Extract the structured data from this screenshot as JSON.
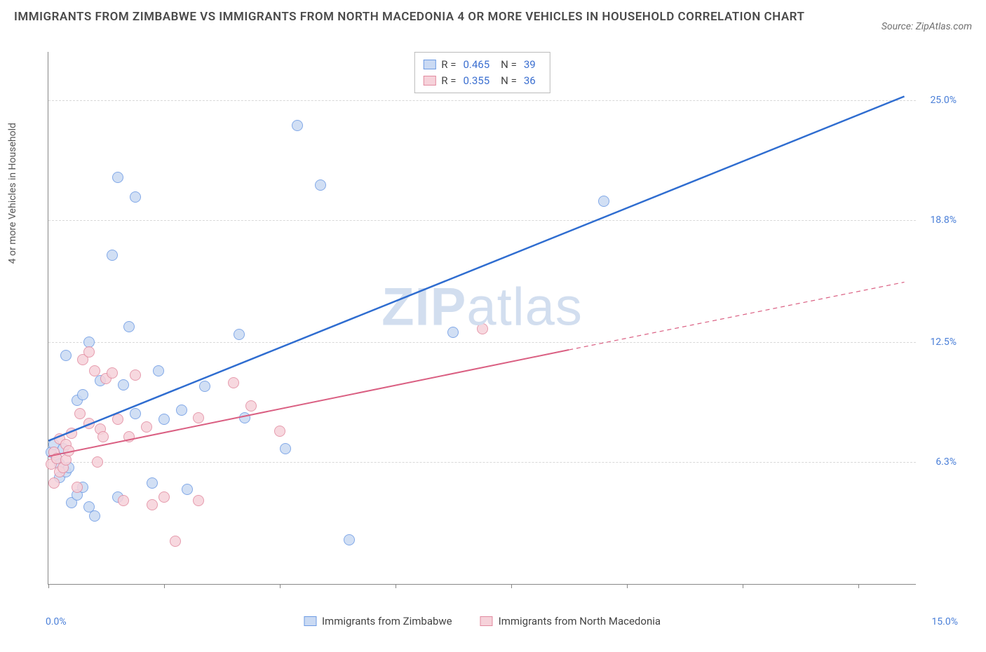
{
  "title": "IMMIGRANTS FROM ZIMBABWE VS IMMIGRANTS FROM NORTH MACEDONIA 4 OR MORE VEHICLES IN HOUSEHOLD CORRELATION CHART",
  "source": "Source: ZipAtlas.com",
  "ylabel": "4 or more Vehicles in Household",
  "watermark_bold": "ZIP",
  "watermark_light": "atlas",
  "chart": {
    "type": "scatter-with-regression",
    "xlim": [
      0,
      15
    ],
    "ylim": [
      0,
      27.5
    ],
    "x_ticks": [
      0,
      2,
      4,
      6,
      8,
      10,
      12,
      14
    ],
    "y_gridlines": [
      6.3,
      12.5,
      18.8,
      25.0
    ],
    "y_tick_labels": [
      "6.3%",
      "12.5%",
      "18.8%",
      "25.0%"
    ],
    "x_left_label": "0.0%",
    "x_right_label": "15.0%",
    "background_color": "#ffffff",
    "grid_color": "#d8d8d8",
    "axis_color": "#888888"
  },
  "series": [
    {
      "name": "Immigrants from Zimbabwe",
      "color_fill": "#cadaf3",
      "color_stroke": "#6d9be4",
      "line_color": "#2f6dd0",
      "line_width": 2.5,
      "line_dash": "none",
      "R_label": "R =",
      "R": "0.465",
      "N_label": "N =",
      "N": "39",
      "reg_start": [
        0.0,
        7.4
      ],
      "reg_end": [
        14.8,
        25.2
      ],
      "points": [
        [
          0.05,
          6.8
        ],
        [
          0.1,
          7.2
        ],
        [
          0.15,
          6.5
        ],
        [
          0.2,
          5.5
        ],
        [
          0.2,
          6.2
        ],
        [
          0.25,
          7.0
        ],
        [
          0.3,
          11.8
        ],
        [
          0.3,
          5.8
        ],
        [
          0.4,
          4.2
        ],
        [
          0.5,
          9.5
        ],
        [
          0.5,
          4.6
        ],
        [
          0.6,
          5.0
        ],
        [
          0.6,
          9.8
        ],
        [
          0.7,
          4.0
        ],
        [
          0.7,
          12.5
        ],
        [
          0.8,
          3.5
        ],
        [
          0.9,
          10.5
        ],
        [
          1.1,
          17.0
        ],
        [
          1.2,
          4.5
        ],
        [
          1.2,
          21.0
        ],
        [
          1.3,
          10.3
        ],
        [
          1.4,
          13.3
        ],
        [
          1.5,
          8.8
        ],
        [
          1.5,
          20.0
        ],
        [
          1.8,
          5.2
        ],
        [
          1.9,
          11.0
        ],
        [
          2.0,
          8.5
        ],
        [
          2.3,
          9.0
        ],
        [
          2.4,
          4.9
        ],
        [
          2.7,
          10.2
        ],
        [
          3.3,
          12.9
        ],
        [
          3.4,
          8.6
        ],
        [
          4.1,
          7.0
        ],
        [
          4.3,
          23.7
        ],
        [
          4.7,
          20.6
        ],
        [
          5.2,
          2.3
        ],
        [
          7.0,
          13.0
        ],
        [
          0.35,
          6.0
        ],
        [
          9.6,
          19.8
        ]
      ]
    },
    {
      "name": "Immigrants from North Macedonia",
      "color_fill": "#f6d2da",
      "color_stroke": "#e28ba0",
      "line_color": "#da5f82",
      "line_width": 2,
      "line_dash": "solid-then-dash",
      "R_label": "R =",
      "R": "0.355",
      "N_label": "N =",
      "N": "36",
      "reg_start": [
        0.0,
        6.6
      ],
      "reg_end_solid": [
        9.0,
        12.1
      ],
      "reg_end_dash": [
        14.8,
        15.6
      ],
      "points": [
        [
          0.05,
          6.2
        ],
        [
          0.1,
          5.2
        ],
        [
          0.1,
          6.8
        ],
        [
          0.15,
          6.5
        ],
        [
          0.2,
          7.5
        ],
        [
          0.2,
          5.8
        ],
        [
          0.25,
          6.0
        ],
        [
          0.3,
          7.2
        ],
        [
          0.3,
          6.4
        ],
        [
          0.35,
          6.9
        ],
        [
          0.4,
          7.8
        ],
        [
          0.5,
          5.0
        ],
        [
          0.55,
          8.8
        ],
        [
          0.6,
          11.6
        ],
        [
          0.7,
          8.3
        ],
        [
          0.7,
          12.0
        ],
        [
          0.8,
          11.0
        ],
        [
          0.85,
          6.3
        ],
        [
          0.9,
          8.0
        ],
        [
          0.95,
          7.6
        ],
        [
          1.0,
          10.6
        ],
        [
          1.1,
          10.9
        ],
        [
          1.2,
          8.5
        ],
        [
          1.3,
          4.3
        ],
        [
          1.4,
          7.6
        ],
        [
          1.5,
          10.8
        ],
        [
          1.7,
          8.1
        ],
        [
          1.8,
          4.1
        ],
        [
          2.0,
          4.5
        ],
        [
          2.2,
          2.2
        ],
        [
          2.6,
          4.3
        ],
        [
          2.6,
          8.6
        ],
        [
          3.2,
          10.4
        ],
        [
          3.5,
          9.2
        ],
        [
          4.0,
          7.9
        ],
        [
          7.5,
          13.2
        ]
      ]
    }
  ]
}
